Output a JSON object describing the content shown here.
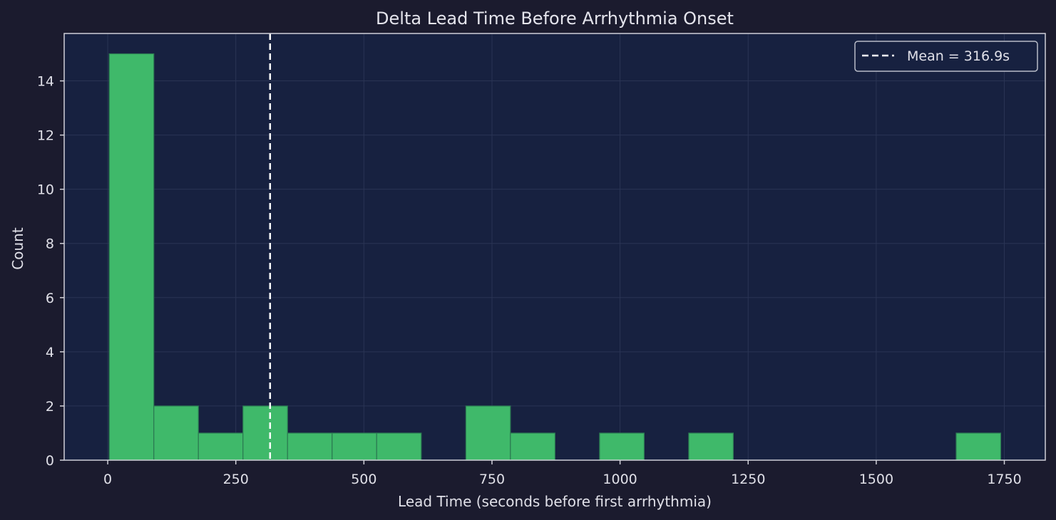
{
  "chart_data": {
    "type": "histogram",
    "title": "Delta Lead Time Before Arrhythmia Onset",
    "xlabel": "Lead Time (seconds before first arrhythmia)",
    "ylabel": "Count",
    "xlim": [
      -85,
      1830
    ],
    "ylim": [
      0,
      15.75
    ],
    "xticks": [
      0,
      250,
      500,
      750,
      1000,
      1250,
      1500,
      1750
    ],
    "yticks": [
      0,
      2,
      4,
      6,
      8,
      10,
      12,
      14
    ],
    "grid": true,
    "bin_start": 3,
    "bin_width": 87,
    "counts": [
      15,
      2,
      1,
      2,
      1,
      1,
      1,
      0,
      2,
      1,
      0,
      1,
      0,
      1,
      0,
      0,
      0,
      0,
      0,
      1
    ],
    "mean_line": {
      "x": 316.9,
      "label": "Mean = 316.9s"
    },
    "legend_position": "top-right",
    "colors": {
      "bar_fill": "#3fb96a",
      "bar_edge": "#2c7a52",
      "plot_bg": "#172140",
      "figure_bg": "#1b1b2e",
      "mean_line": "#ffffff",
      "axis": "#d0d0d8",
      "grid": "#2a3454"
    }
  }
}
